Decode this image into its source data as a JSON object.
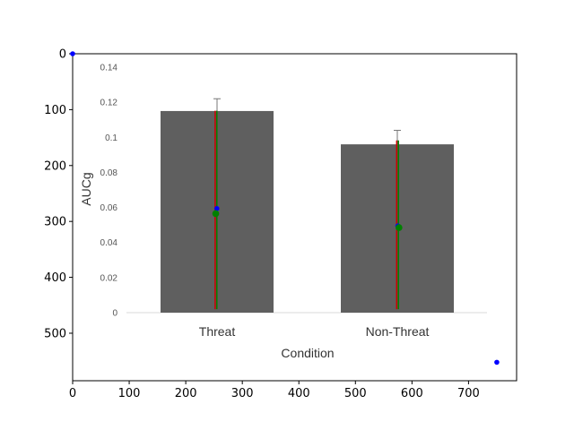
{
  "chart_data": {
    "type": "bar",
    "outer_axes": {
      "xlim": [
        0,
        785
      ],
      "ylim": [
        585,
        0
      ],
      "xticks": [
        "0",
        "100",
        "200",
        "300",
        "400",
        "500",
        "600",
        "700"
      ],
      "yticks": [
        "0",
        "100",
        "200",
        "300",
        "400",
        "500"
      ],
      "markers": [
        {
          "x": 0,
          "y": 0,
          "color": "#0000ff"
        },
        {
          "x": 750,
          "y": 552,
          "color": "#0000ff"
        },
        {
          "x": 255,
          "y": 277,
          "color": "#0000ff"
        },
        {
          "x": 575,
          "y": 308,
          "color": "#0000ff"
        },
        {
          "x": 253,
          "y": 286,
          "color": "#008000"
        },
        {
          "x": 577,
          "y": 311,
          "color": "#008000"
        }
      ],
      "vlines": [
        {
          "x": 252,
          "y1": 102,
          "y2": 457,
          "color": "#cc0000"
        },
        {
          "x": 255,
          "y1": 102,
          "y2": 457,
          "color": "#008000"
        },
        {
          "x": 573,
          "y1": 155,
          "y2": 457,
          "color": "#cc0000"
        },
        {
          "x": 576,
          "y1": 155,
          "y2": 457,
          "color": "#008000"
        }
      ]
    },
    "inner_chart": {
      "title": "",
      "xlabel": "Condition",
      "ylabel": "AUCg",
      "ylim": [
        0,
        0.14
      ],
      "yticks": [
        "0.14",
        "0.12",
        "0.1",
        "0.08",
        "0.06",
        "0.04",
        "0.02",
        "0"
      ],
      "categories": [
        "Threat",
        "Non-Threat"
      ],
      "values": [
        0.115,
        0.096
      ],
      "error_upper": [
        0.122,
        0.104
      ],
      "bar_color": "#5f5f5f"
    }
  }
}
